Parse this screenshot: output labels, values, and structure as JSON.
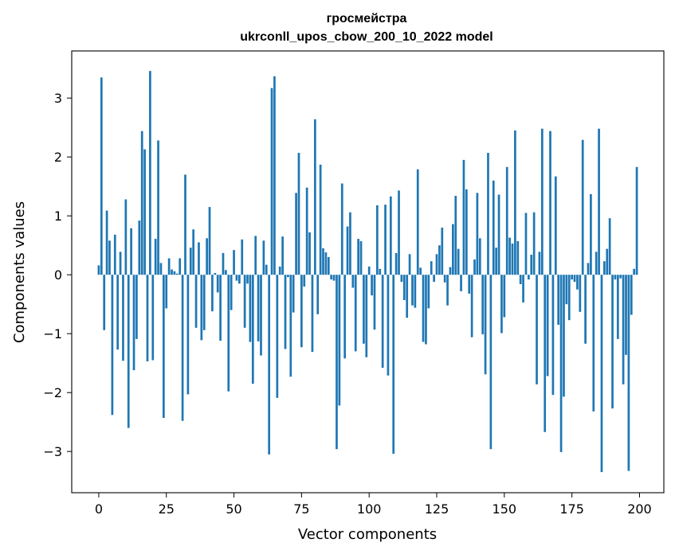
{
  "chart_data": {
    "type": "bar",
    "title": [
      "гросмейстра",
      "ukrconll_upos_cbow_200_10_2022 model"
    ],
    "xlabel": "Vector components",
    "ylabel": "Components values",
    "xlim": [
      -10,
      209
    ],
    "ylim": [
      -3.7,
      3.8
    ],
    "xticks": [
      0,
      25,
      50,
      75,
      100,
      125,
      150,
      175,
      200
    ],
    "yticks": [
      -3,
      -2,
      -1,
      0,
      1,
      2,
      3
    ],
    "ytick_labels": [
      "−3",
      "−2",
      "−1",
      "0",
      "1",
      "2",
      "3"
    ],
    "grid": false,
    "bar_color": "#1f77b4",
    "x": [
      0,
      1,
      2,
      3,
      4,
      5,
      6,
      7,
      8,
      9,
      10,
      11,
      12,
      13,
      14,
      15,
      16,
      17,
      18,
      19,
      20,
      21,
      22,
      23,
      24,
      25,
      26,
      27,
      28,
      29,
      30,
      31,
      32,
      33,
      34,
      35,
      36,
      37,
      38,
      39,
      40,
      41,
      42,
      43,
      44,
      45,
      46,
      47,
      48,
      49,
      50,
      51,
      52,
      53,
      54,
      55,
      56,
      57,
      58,
      59,
      60,
      61,
      62,
      63,
      64,
      65,
      66,
      67,
      68,
      69,
      70,
      71,
      72,
      73,
      74,
      75,
      76,
      77,
      78,
      79,
      80,
      81,
      82,
      83,
      84,
      85,
      86,
      87,
      88,
      89,
      90,
      91,
      92,
      93,
      94,
      95,
      96,
      97,
      98,
      99,
      100,
      101,
      102,
      103,
      104,
      105,
      106,
      107,
      108,
      109,
      110,
      111,
      112,
      113,
      114,
      115,
      116,
      117,
      118,
      119,
      120,
      121,
      122,
      123,
      124,
      125,
      126,
      127,
      128,
      129,
      130,
      131,
      132,
      133,
      134,
      135,
      136,
      137,
      138,
      139,
      140,
      141,
      142,
      143,
      144,
      145,
      146,
      147,
      148,
      149,
      150,
      151,
      152,
      153,
      154,
      155,
      156,
      157,
      158,
      159,
      160,
      161,
      162,
      163,
      164,
      165,
      166,
      167,
      168,
      169,
      170,
      171,
      172,
      173,
      174,
      175,
      176,
      177,
      178,
      179,
      180,
      181,
      182,
      183,
      184,
      185,
      186,
      187,
      188,
      189,
      190,
      191,
      192,
      193,
      194,
      195,
      196,
      197,
      198,
      199
    ],
    "values": [
      0.16,
      3.35,
      -0.94,
      1.09,
      0.58,
      -2.38,
      0.68,
      -1.27,
      0.39,
      -1.46,
      1.28,
      -2.6,
      0.79,
      -1.62,
      -1.09,
      0.92,
      2.44,
      2.13,
      -1.47,
      3.46,
      -1.45,
      0.61,
      2.28,
      0.2,
      -2.43,
      -0.57,
      0.28,
      0.09,
      0.06,
      0.02,
      0.28,
      -2.48,
      1.7,
      -2.03,
      0.46,
      0.77,
      -0.9,
      0.55,
      -1.11,
      -0.94,
      0.62,
      1.15,
      -0.62,
      0.03,
      -0.3,
      -1.12,
      0.37,
      0.08,
      -1.98,
      -0.6,
      0.42,
      -0.1,
      -0.15,
      0.6,
      -0.9,
      -0.15,
      -1.14,
      -1.85,
      0.66,
      -1.13,
      -1.37,
      0.58,
      0.17,
      -3.05,
      3.17,
      3.37,
      -2.09,
      0.14,
      0.65,
      -1.26,
      -0.04,
      -1.73,
      -0.64,
      1.39,
      2.07,
      -1.23,
      -0.2,
      1.48,
      0.72,
      -1.31,
      2.64,
      -0.67,
      1.87,
      0.45,
      0.38,
      0.3,
      -0.08,
      -0.1,
      -2.96,
      -2.22,
      1.55,
      -1.42,
      0.82,
      1.06,
      -0.22,
      -1.3,
      0.61,
      0.57,
      -1.17,
      -1.4,
      0.14,
      -0.35,
      -0.93,
      1.18,
      0.1,
      -1.58,
      1.19,
      -1.71,
      1.33,
      -3.04,
      0.37,
      1.43,
      -0.12,
      -0.43,
      -0.73,
      0.35,
      -0.52,
      -0.56,
      1.79,
      0.12,
      -1.14,
      -1.18,
      -0.57,
      0.23,
      -0.12,
      0.35,
      0.5,
      0.8,
      -0.13,
      -0.52,
      0.13,
      0.86,
      1.34,
      0.44,
      -0.28,
      1.95,
      1.45,
      -0.32,
      -1.06,
      0.26,
      1.39,
      0.62,
      -1.01,
      -1.69,
      2.07,
      -2.96,
      1.6,
      0.46,
      1.36,
      -0.99,
      -0.72,
      1.83,
      0.63,
      0.53,
      2.45,
      0.57,
      -0.16,
      -0.47,
      1.05,
      -0.08,
      0.34,
      1.06,
      -1.86,
      0.39,
      2.48,
      -2.67,
      -1.72,
      2.44,
      -2.04,
      1.67,
      -0.85,
      -3.01,
      -2.07,
      -0.5,
      -0.77,
      -0.08,
      -0.12,
      -0.25,
      -0.63,
      2.29,
      -1.17,
      0.2,
      1.37,
      -2.32,
      0.39,
      2.48,
      -3.35,
      0.23,
      0.44,
      0.96,
      -2.27,
      -0.08,
      -1.09,
      -0.06,
      -1.86,
      -1.36,
      -3.33,
      -0.68,
      0.1,
      1.83
    ]
  }
}
